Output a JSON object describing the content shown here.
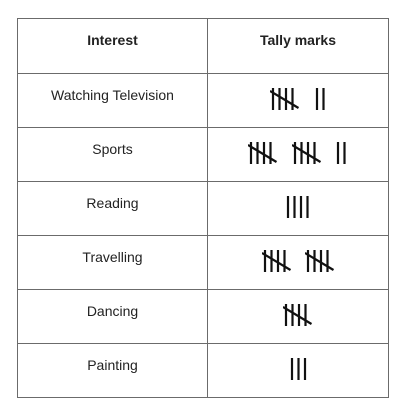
{
  "table": {
    "headers": {
      "interest": "Interest",
      "tally": "Tally marks"
    },
    "rows": [
      {
        "interest": "Watching Television",
        "count": 7
      },
      {
        "interest": "Sports",
        "count": 12
      },
      {
        "interest": "Reading",
        "count": 4
      },
      {
        "interest": "Travelling",
        "count": 10
      },
      {
        "interest": "Dancing",
        "count": 5
      },
      {
        "interest": "Painting",
        "count": 3
      }
    ]
  }
}
